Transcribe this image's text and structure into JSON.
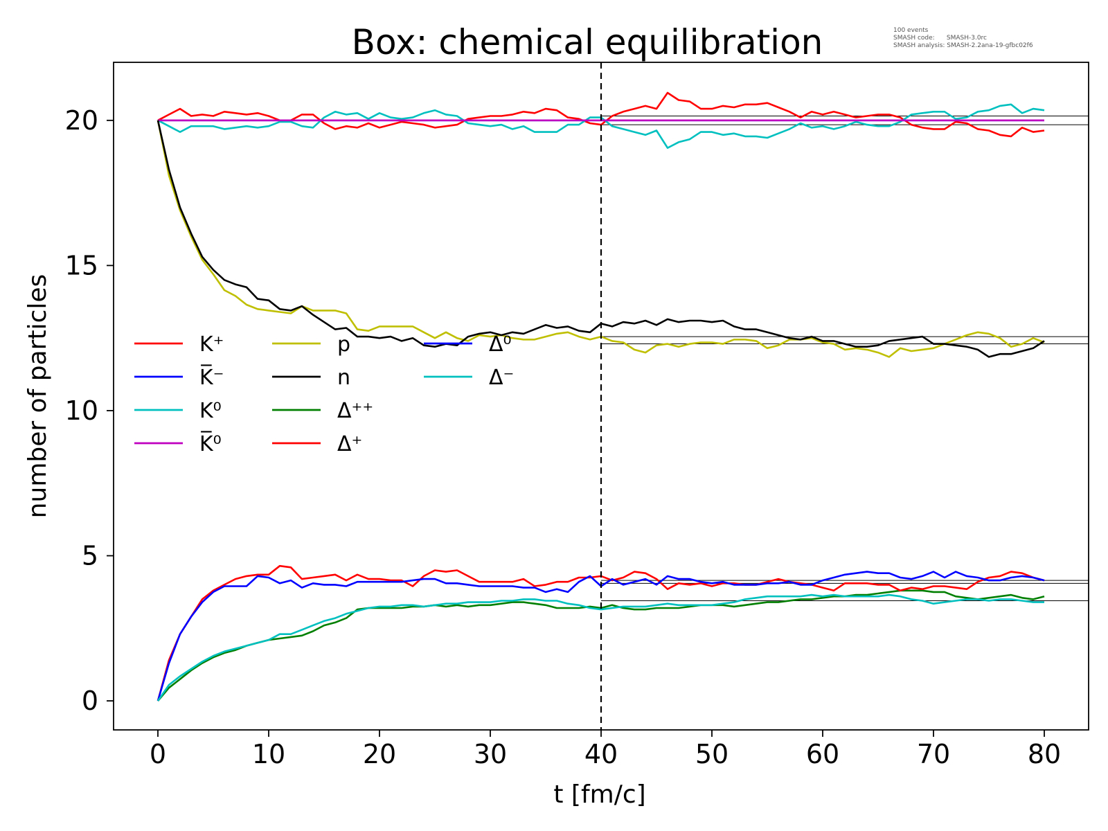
{
  "chart_data": {
    "type": "line",
    "title": "Box: chemical equilibration",
    "xlabel": "t [fm/c]",
    "ylabel": "number of particles",
    "xlim": [
      -4,
      84
    ],
    "ylim": [
      -1,
      22
    ],
    "xticks": [
      0,
      10,
      20,
      30,
      40,
      50,
      60,
      70,
      80
    ],
    "yticks": [
      0,
      5,
      10,
      15,
      20
    ],
    "grid": false,
    "legend_position": "center-left",
    "metadata_lines": [
      "100 events",
      "SMASH code:      SMASH-3.0rc",
      "SMASH analysis: SMASH-2.2ana-19-gfbc02f6"
    ],
    "x": [
      0,
      1,
      2,
      3,
      4,
      5,
      6,
      7,
      8,
      9,
      10,
      11,
      12,
      13,
      14,
      15,
      16,
      17,
      18,
      19,
      20,
      21,
      22,
      23,
      24,
      25,
      26,
      27,
      28,
      29,
      30,
      31,
      32,
      33,
      34,
      35,
      36,
      37,
      38,
      39,
      40,
      41,
      42,
      43,
      44,
      45,
      46,
      47,
      48,
      49,
      50,
      51,
      52,
      53,
      54,
      55,
      56,
      57,
      58,
      59,
      60,
      61,
      62,
      63,
      64,
      65,
      66,
      67,
      68,
      69,
      70,
      71,
      72,
      73,
      74,
      75,
      76,
      77,
      78,
      79,
      80
    ],
    "vline": {
      "x": 40,
      "style": "dashed",
      "color": "#000000"
    },
    "reference_lines": [
      {
        "y": 20.15,
        "from": 40,
        "to": 84
      },
      {
        "y": 19.85,
        "from": 40,
        "to": 84
      },
      {
        "y": 12.55,
        "from": 40,
        "to": 84
      },
      {
        "y": 12.3,
        "from": 40,
        "to": 84
      },
      {
        "y": 4.15,
        "from": 40,
        "to": 84
      },
      {
        "y": 4.05,
        "from": 40,
        "to": 84
      },
      {
        "y": 3.45,
        "from": 40,
        "to": 84
      }
    ],
    "series": [
      {
        "name": "K⁺",
        "color": "#ff0000",
        "values": [
          20.0,
          20.2,
          20.4,
          20.15,
          20.2,
          20.15,
          20.3,
          20.25,
          20.2,
          20.25,
          20.15,
          20.0,
          20.0,
          20.2,
          20.2,
          19.9,
          19.7,
          19.8,
          19.75,
          19.9,
          19.75,
          19.85,
          19.95,
          19.9,
          19.85,
          19.75,
          19.8,
          19.85,
          20.05,
          20.1,
          20.15,
          20.15,
          20.2,
          20.3,
          20.25,
          20.4,
          20.35,
          20.1,
          20.05,
          19.9,
          19.85,
          20.15,
          20.3,
          20.4,
          20.5,
          20.4,
          20.95,
          20.7,
          20.65,
          20.4,
          20.4,
          20.5,
          20.45,
          20.55,
          20.55,
          20.6,
          20.45,
          20.3,
          20.1,
          20.3,
          20.2,
          20.3,
          20.2,
          20.1,
          20.15,
          20.2,
          20.2,
          20.1,
          19.85,
          19.75,
          19.7,
          19.7,
          19.95,
          19.9,
          19.7,
          19.65,
          19.5,
          19.45,
          19.75,
          19.6,
          19.65
        ]
      },
      {
        "name": "K̅⁻",
        "color": "#0000ff",
        "values": [
          20.0,
          20.0,
          20.0,
          20.0,
          20.0,
          20.0,
          20.0,
          20.0,
          20.0,
          20.0,
          20.0,
          20.0,
          20.0,
          20.0,
          20.0,
          20.0,
          20.0,
          20.0,
          20.0,
          20.0,
          20.0,
          20.0,
          20.0,
          20.0,
          20.0,
          20.0,
          20.0,
          20.0,
          20.0,
          20.0,
          20.0,
          20.0,
          20.0,
          20.0,
          20.0,
          20.0,
          20.0,
          20.0,
          20.0,
          20.0,
          20.0,
          20.0,
          20.0,
          20.0,
          20.0,
          20.0,
          20.0,
          20.0,
          20.0,
          20.0,
          20.0,
          20.0,
          20.0,
          20.0,
          20.0,
          20.0,
          20.0,
          20.0,
          20.0,
          20.0,
          20.0,
          20.0,
          20.0,
          20.0,
          20.0,
          20.0,
          20.0,
          20.0,
          20.0,
          20.0,
          20.0,
          20.0,
          20.0,
          20.0,
          20.0,
          20.0,
          20.0,
          20.0,
          20.0,
          20.0,
          20.0
        ]
      },
      {
        "name": "K⁰",
        "color": "#00bfbf",
        "values": [
          20.0,
          19.8,
          19.6,
          19.8,
          19.8,
          19.8,
          19.7,
          19.75,
          19.8,
          19.75,
          19.8,
          19.95,
          19.95,
          19.8,
          19.75,
          20.1,
          20.3,
          20.2,
          20.25,
          20.05,
          20.25,
          20.1,
          20.05,
          20.1,
          20.25,
          20.35,
          20.2,
          20.15,
          19.9,
          19.85,
          19.8,
          19.85,
          19.7,
          19.8,
          19.6,
          19.6,
          19.6,
          19.85,
          19.85,
          20.1,
          20.1,
          19.8,
          19.7,
          19.6,
          19.5,
          19.65,
          19.05,
          19.25,
          19.35,
          19.6,
          19.6,
          19.5,
          19.55,
          19.45,
          19.45,
          19.4,
          19.55,
          19.7,
          19.9,
          19.75,
          19.8,
          19.7,
          19.8,
          19.95,
          19.85,
          19.8,
          19.8,
          19.95,
          20.2,
          20.25,
          20.3,
          20.3,
          20.05,
          20.1,
          20.3,
          20.35,
          20.5,
          20.55,
          20.25,
          20.4,
          20.35
        ]
      },
      {
        "name": "K̅⁰",
        "color": "#bf00bf",
        "values": [
          20.0,
          20.0,
          20.0,
          20.0,
          20.0,
          20.0,
          20.0,
          20.0,
          20.0,
          20.0,
          20.0,
          20.0,
          20.0,
          20.0,
          20.0,
          20.0,
          20.0,
          20.0,
          20.0,
          20.0,
          20.0,
          20.0,
          20.0,
          20.0,
          20.0,
          20.0,
          20.0,
          20.0,
          20.0,
          20.0,
          20.0,
          20.0,
          20.0,
          20.0,
          20.0,
          20.0,
          20.0,
          20.0,
          20.0,
          20.0,
          20.0,
          20.0,
          20.0,
          20.0,
          20.0,
          20.0,
          20.0,
          20.0,
          20.0,
          20.0,
          20.0,
          20.0,
          20.0,
          20.0,
          20.0,
          20.0,
          20.0,
          20.0,
          20.0,
          20.0,
          20.0,
          20.0,
          20.0,
          20.0,
          20.0,
          20.0,
          20.0,
          20.0,
          20.0,
          20.0,
          20.0,
          20.0,
          20.0,
          20.0,
          20.0,
          20.0,
          20.0,
          20.0,
          20.0,
          20.0,
          20.0
        ]
      },
      {
        "name": "p",
        "color": "#bfbf00",
        "values": [
          20.0,
          18.1,
          16.9,
          16.0,
          15.2,
          14.7,
          14.15,
          13.95,
          13.65,
          13.5,
          13.45,
          13.4,
          13.35,
          13.6,
          13.45,
          13.45,
          13.45,
          13.35,
          12.8,
          12.75,
          12.9,
          12.9,
          12.9,
          12.9,
          12.7,
          12.5,
          12.7,
          12.5,
          12.4,
          12.6,
          12.55,
          12.6,
          12.5,
          12.45,
          12.45,
          12.55,
          12.65,
          12.7,
          12.55,
          12.45,
          12.55,
          12.4,
          12.35,
          12.1,
          12.0,
          12.25,
          12.3,
          12.2,
          12.3,
          12.35,
          12.35,
          12.3,
          12.45,
          12.45,
          12.4,
          12.15,
          12.25,
          12.45,
          12.45,
          12.5,
          12.35,
          12.3,
          12.1,
          12.15,
          12.1,
          12.0,
          11.85,
          12.15,
          12.05,
          12.1,
          12.15,
          12.3,
          12.45,
          12.6,
          12.7,
          12.65,
          12.5,
          12.2,
          12.3,
          12.5,
          12.35
        ]
      },
      {
        "name": "n",
        "color": "#000000",
        "values": [
          20.0,
          18.3,
          17.0,
          16.1,
          15.3,
          14.85,
          14.5,
          14.35,
          14.25,
          13.85,
          13.8,
          13.5,
          13.45,
          13.6,
          13.3,
          13.05,
          12.8,
          12.85,
          12.55,
          12.55,
          12.5,
          12.55,
          12.4,
          12.5,
          12.25,
          12.2,
          12.3,
          12.25,
          12.55,
          12.65,
          12.7,
          12.6,
          12.7,
          12.65,
          12.8,
          12.95,
          12.85,
          12.9,
          12.75,
          12.7,
          13.0,
          12.9,
          13.05,
          13.0,
          13.1,
          12.95,
          13.15,
          13.05,
          13.1,
          13.1,
          13.05,
          13.1,
          12.9,
          12.8,
          12.8,
          12.7,
          12.6,
          12.5,
          12.45,
          12.55,
          12.4,
          12.4,
          12.3,
          12.2,
          12.2,
          12.25,
          12.4,
          12.45,
          12.5,
          12.55,
          12.3,
          12.3,
          12.25,
          12.2,
          12.1,
          11.85,
          11.95,
          11.95,
          12.05,
          12.15,
          12.4
        ]
      },
      {
        "name": "Δ⁺⁺",
        "color": "#007f00",
        "values": [
          0.0,
          0.45,
          0.75,
          1.05,
          1.3,
          1.5,
          1.65,
          1.75,
          1.9,
          2.0,
          2.1,
          2.15,
          2.2,
          2.25,
          2.4,
          2.6,
          2.7,
          2.85,
          3.15,
          3.2,
          3.2,
          3.2,
          3.2,
          3.25,
          3.25,
          3.3,
          3.25,
          3.3,
          3.25,
          3.3,
          3.3,
          3.35,
          3.4,
          3.4,
          3.35,
          3.3,
          3.2,
          3.2,
          3.2,
          3.25,
          3.2,
          3.3,
          3.2,
          3.15,
          3.15,
          3.2,
          3.2,
          3.2,
          3.25,
          3.3,
          3.3,
          3.3,
          3.25,
          3.3,
          3.35,
          3.4,
          3.4,
          3.45,
          3.5,
          3.5,
          3.55,
          3.6,
          3.6,
          3.65,
          3.65,
          3.7,
          3.75,
          3.8,
          3.8,
          3.8,
          3.75,
          3.75,
          3.6,
          3.55,
          3.5,
          3.55,
          3.6,
          3.65,
          3.55,
          3.5,
          3.6
        ]
      },
      {
        "name": "Δ⁺",
        "color": "#ff0000",
        "values": [
          0.0,
          1.4,
          2.3,
          2.9,
          3.5,
          3.8,
          4.0,
          4.2,
          4.3,
          4.35,
          4.35,
          4.65,
          4.6,
          4.2,
          4.25,
          4.3,
          4.35,
          4.15,
          4.35,
          4.2,
          4.2,
          4.15,
          4.15,
          3.95,
          4.3,
          4.5,
          4.45,
          4.5,
          4.3,
          4.1,
          4.1,
          4.1,
          4.1,
          4.2,
          3.95,
          4.0,
          4.1,
          4.1,
          4.25,
          4.25,
          4.3,
          4.15,
          4.25,
          4.45,
          4.4,
          4.2,
          3.85,
          4.05,
          4.0,
          4.05,
          3.95,
          4.05,
          4.05,
          4.0,
          4.0,
          4.1,
          4.2,
          4.1,
          4.05,
          4.0,
          3.9,
          3.8,
          4.05,
          4.05,
          4.05,
          4.0,
          4.0,
          3.8,
          3.9,
          3.85,
          3.95,
          3.95,
          3.9,
          3.85,
          4.1,
          4.25,
          4.3,
          4.45,
          4.4,
          4.25,
          4.15
        ]
      },
      {
        "name": "Δ⁰",
        "color": "#0000ff",
        "values": [
          0.0,
          1.3,
          2.3,
          2.9,
          3.4,
          3.75,
          3.95,
          3.95,
          3.95,
          4.3,
          4.25,
          4.05,
          4.15,
          3.9,
          4.05,
          4.0,
          4.0,
          3.95,
          4.1,
          4.1,
          4.1,
          4.1,
          4.1,
          4.15,
          4.2,
          4.2,
          4.05,
          4.05,
          4.0,
          3.95,
          3.95,
          3.95,
          3.95,
          3.9,
          3.9,
          3.75,
          3.85,
          3.75,
          4.1,
          4.3,
          3.95,
          4.2,
          4.0,
          4.1,
          4.2,
          4.0,
          4.3,
          4.2,
          4.2,
          4.1,
          4.05,
          4.1,
          4.0,
          4.0,
          4.0,
          4.05,
          4.05,
          4.1,
          4.0,
          4.0,
          4.15,
          4.25,
          4.35,
          4.4,
          4.45,
          4.4,
          4.4,
          4.25,
          4.2,
          4.3,
          4.45,
          4.25,
          4.45,
          4.3,
          4.25,
          4.15,
          4.15,
          4.25,
          4.3,
          4.25,
          4.15
        ]
      },
      {
        "name": "Δ⁻",
        "color": "#00bfbf",
        "values": [
          0.0,
          0.55,
          0.85,
          1.1,
          1.35,
          1.55,
          1.7,
          1.8,
          1.9,
          2.0,
          2.1,
          2.3,
          2.3,
          2.45,
          2.6,
          2.75,
          2.85,
          3.0,
          3.1,
          3.2,
          3.25,
          3.25,
          3.3,
          3.3,
          3.25,
          3.3,
          3.35,
          3.35,
          3.4,
          3.4,
          3.4,
          3.45,
          3.45,
          3.5,
          3.5,
          3.45,
          3.45,
          3.35,
          3.3,
          3.2,
          3.15,
          3.2,
          3.25,
          3.25,
          3.25,
          3.3,
          3.35,
          3.3,
          3.3,
          3.3,
          3.3,
          3.35,
          3.4,
          3.5,
          3.55,
          3.6,
          3.6,
          3.6,
          3.6,
          3.65,
          3.6,
          3.65,
          3.6,
          3.6,
          3.6,
          3.6,
          3.65,
          3.6,
          3.5,
          3.45,
          3.35,
          3.4,
          3.45,
          3.5,
          3.5,
          3.45,
          3.5,
          3.5,
          3.45,
          3.4,
          3.4
        ]
      }
    ]
  }
}
